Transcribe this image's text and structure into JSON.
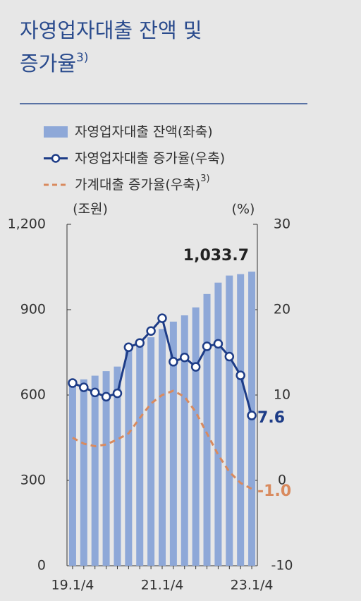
{
  "chart_data": {
    "type": "bar",
    "title": [
      "자영업자대출 잔액 및",
      "증가율"
    ],
    "title_note": "3)",
    "y_unit": "(조원)",
    "y2_unit": "(%)",
    "categories": [
      "19.1/4",
      null,
      null,
      null,
      null,
      null,
      null,
      null,
      "21.1/4",
      null,
      null,
      null,
      null,
      null,
      null,
      null,
      "23.1/4"
    ],
    "ylim": [
      0,
      1200
    ],
    "yticks": [
      0,
      300,
      600,
      900,
      {
        "value": 1200,
        "label": "1,200"
      }
    ],
    "y2lim": [
      -10,
      30
    ],
    "y2ticks": [
      -10,
      0,
      10,
      20,
      30
    ],
    "series": [
      {
        "name": "자영업자대출 잔액(좌축)",
        "type": "bar",
        "axis": "y",
        "color": "#8ea8d8",
        "values": [
          645,
          655,
          668,
          684,
          700,
          760,
          780,
          803,
          832,
          858,
          880,
          908,
          955,
          995,
          1020,
          1025,
          1033.7
        ],
        "value_labels": [
          null,
          null,
          null,
          null,
          null,
          null,
          null,
          null,
          null,
          null,
          null,
          null,
          null,
          null,
          null,
          null,
          "1,033.7"
        ]
      },
      {
        "name": "자영업자대출 증가율(우축)",
        "type": "line",
        "axis": "y2",
        "color": "#1d3c87",
        "markers": true,
        "values": [
          11.4,
          10.9,
          10.3,
          9.8,
          10.2,
          15.6,
          16.1,
          17.5,
          19.0,
          13.9,
          14.4,
          13.3,
          15.7,
          16.0,
          14.5,
          12.3,
          7.6
        ],
        "value_labels": [
          null,
          null,
          null,
          null,
          null,
          null,
          null,
          null,
          null,
          null,
          null,
          null,
          null,
          null,
          null,
          null,
          "7.6"
        ]
      },
      {
        "name": "가계대출 증가율(우축)",
        "name_note": "3)",
        "type": "line",
        "axis": "y2",
        "color": "#d98a5e",
        "dashed": true,
        "values": [
          5.0,
          4.3,
          4.0,
          4.2,
          4.8,
          5.5,
          7.3,
          9.0,
          10.0,
          10.5,
          9.8,
          8.0,
          5.5,
          3.0,
          1.0,
          -0.3,
          -1.0
        ],
        "value_labels": [
          null,
          null,
          null,
          null,
          null,
          null,
          null,
          null,
          null,
          null,
          null,
          null,
          null,
          null,
          null,
          null,
          "-1.0"
        ]
      }
    ]
  }
}
